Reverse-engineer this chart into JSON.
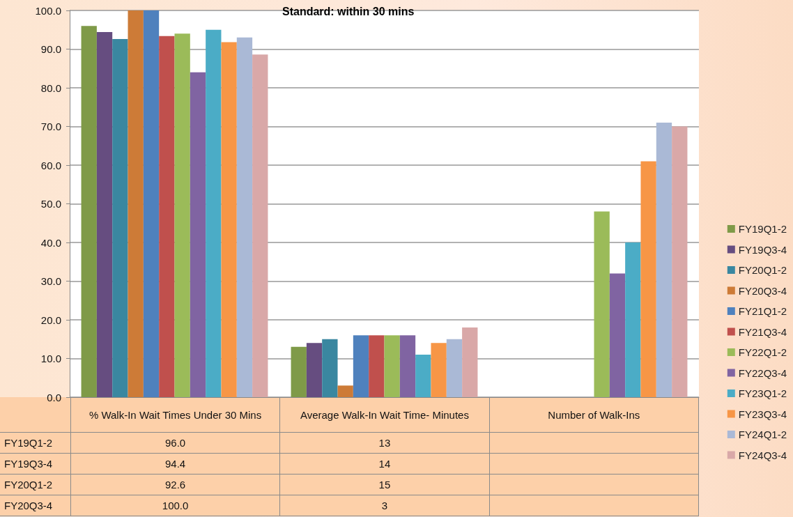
{
  "chart_data": {
    "type": "bar",
    "title": "Standard: within 30 mins",
    "categories": [
      "% Walk-In Wait Times Under 30 Mins",
      "Average Walk-In Wait Time- Minutes",
      "Number of Walk-Ins"
    ],
    "series": [
      {
        "name": "FY19Q1-2",
        "color": "#7f9a48",
        "values": [
          96.0,
          13,
          null
        ],
        "value_labels": [
          "96.0",
          "13",
          null
        ]
      },
      {
        "name": "FY19Q3-4",
        "color": "#664d80",
        "values": [
          94.4,
          14,
          null
        ],
        "value_labels": [
          "94.4",
          "14",
          null
        ]
      },
      {
        "name": "FY20Q1-2",
        "color": "#3a87a0",
        "values": [
          92.6,
          15,
          null
        ],
        "value_labels": [
          "92.6",
          "15",
          null
        ]
      },
      {
        "name": "FY20Q3-4",
        "color": "#cd7b37",
        "values": [
          100.0,
          3,
          null
        ],
        "value_labels": [
          "100.0",
          "3",
          null
        ]
      },
      {
        "name": "FY21Q1-2",
        "color": "#4f81bd",
        "values": [
          100.0,
          16,
          null
        ]
      },
      {
        "name": "FY21Q3-4",
        "color": "#c0504d",
        "values": [
          93.4,
          16,
          null
        ]
      },
      {
        "name": "FY22Q1-2",
        "color": "#9bbb59",
        "values": [
          94.0,
          16,
          48
        ]
      },
      {
        "name": "FY22Q3-4",
        "color": "#8064a2",
        "values": [
          84.0,
          16,
          32
        ]
      },
      {
        "name": "FY23Q1-2",
        "color": "#4bacc6",
        "values": [
          95.0,
          11,
          40
        ]
      },
      {
        "name": "FY23Q3-4",
        "color": "#f79646",
        "values": [
          91.8,
          14,
          61
        ]
      },
      {
        "name": "FY24Q1-2",
        "color": "#aab9d6",
        "values": [
          93.0,
          15,
          71
        ]
      },
      {
        "name": "FY24Q3-4",
        "color": "#d9a8a8",
        "values": [
          88.6,
          18,
          70
        ]
      }
    ],
    "ylim": [
      0,
      100
    ],
    "yticks": [
      {
        "value": 0,
        "label": "0.0"
      },
      {
        "value": 10,
        "label": "10.0"
      },
      {
        "value": 20,
        "label": "20.0"
      },
      {
        "value": 30,
        "label": "30.0"
      },
      {
        "value": 40,
        "label": "40.0"
      },
      {
        "value": 50,
        "label": "50.0"
      },
      {
        "value": 60,
        "label": "60.0"
      },
      {
        "value": 70,
        "label": "70.0"
      },
      {
        "value": 80,
        "label": "80.0"
      },
      {
        "value": 90,
        "label": "90.0"
      },
      {
        "value": 100,
        "label": "100.0"
      }
    ],
    "grid": "y",
    "legend": "right"
  }
}
